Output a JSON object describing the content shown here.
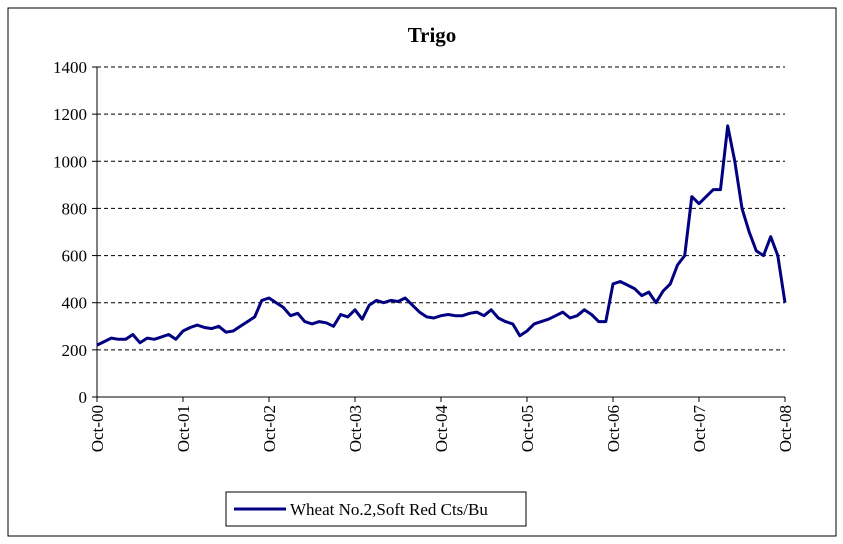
{
  "chart_data": {
    "type": "line",
    "title": "Trigo",
    "categories": [
      "Oct-00",
      null,
      null,
      null,
      null,
      null,
      null,
      null,
      null,
      null,
      null,
      null,
      "Oct-01",
      null,
      null,
      null,
      null,
      null,
      null,
      null,
      null,
      null,
      null,
      null,
      "Oct-02",
      null,
      null,
      null,
      null,
      null,
      null,
      null,
      null,
      null,
      null,
      null,
      "Oct-03",
      null,
      null,
      null,
      null,
      null,
      null,
      null,
      null,
      null,
      null,
      null,
      "Oct-04",
      null,
      null,
      null,
      null,
      null,
      null,
      null,
      null,
      null,
      null,
      null,
      "Oct-05",
      null,
      null,
      null,
      null,
      null,
      null,
      null,
      null,
      null,
      null,
      null,
      "Oct-06",
      null,
      null,
      null,
      null,
      null,
      null,
      null,
      null,
      null,
      null,
      null,
      "Oct-07",
      null,
      null,
      null,
      null,
      null,
      null,
      null,
      null,
      null,
      null,
      null,
      "Oct-08"
    ],
    "series": [
      {
        "name": "Wheat No.2,Soft Red Cts/Bu",
        "color": "#000080",
        "values": [
          220,
          235,
          250,
          245,
          245,
          265,
          230,
          250,
          245,
          255,
          265,
          245,
          280,
          295,
          305,
          295,
          290,
          300,
          275,
          280,
          300,
          320,
          340,
          410,
          420,
          400,
          380,
          345,
          355,
          320,
          310,
          320,
          315,
          300,
          350,
          340,
          370,
          330,
          390,
          410,
          400,
          410,
          405,
          420,
          390,
          360,
          340,
          335,
          345,
          350,
          345,
          345,
          355,
          360,
          345,
          370,
          335,
          320,
          310,
          260,
          280,
          310,
          320,
          330,
          345,
          360,
          335,
          345,
          370,
          350,
          320,
          320,
          480,
          490,
          475,
          460,
          430,
          445,
          400,
          450,
          480,
          560,
          600,
          850,
          820,
          850,
          880,
          880,
          1150,
          1000,
          800,
          700,
          620,
          600,
          680,
          600,
          400
        ]
      }
    ],
    "ylim": [
      0,
      1400
    ],
    "yticks": [
      0,
      200,
      400,
      600,
      800,
      1000,
      1200,
      1400
    ],
    "grid": true,
    "legend": "bottom"
  }
}
